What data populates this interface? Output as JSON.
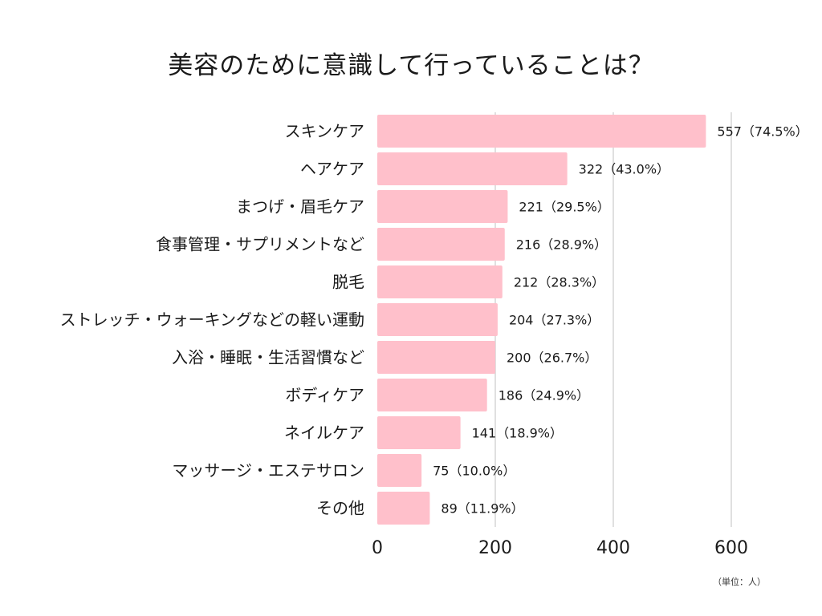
{
  "chart_data": {
    "type": "bar",
    "orientation": "horizontal",
    "title": "美容のために意識して行っていることは？",
    "unit_note": "（単位：人）",
    "categories": [
      "スキンケア",
      "ヘアケア",
      "まつげ・眉毛ケア",
      "食事管理・サプリメントなど",
      "脱毛",
      "ストレッチ・ウォーキングなどの軽い運動",
      "入浴・睡眠・生活習慣など",
      "ボディケア",
      "ネイルケア",
      "マッサージ・エステサロン",
      "その他"
    ],
    "values": [
      557,
      322,
      221,
      216,
      212,
      204,
      200,
      186,
      141,
      75,
      89
    ],
    "value_labels": [
      "557（74.5%）",
      "322（43.0%）",
      "221（29.5%）",
      "216（28.9%）",
      "212（28.3%）",
      "204（27.3%）",
      "200（26.7%）",
      "186（24.9%）",
      "141（18.9%）",
      "75（10.0%）",
      "89（11.9%）"
    ],
    "xlim": [
      0,
      600
    ],
    "x_ticks": [
      0,
      200,
      400,
      600
    ],
    "x_tick_labels": [
      "0",
      "200",
      "400",
      "600"
    ],
    "grid": true,
    "bar_color": "#ffc0cb",
    "grid_color": "#cccccc"
  }
}
